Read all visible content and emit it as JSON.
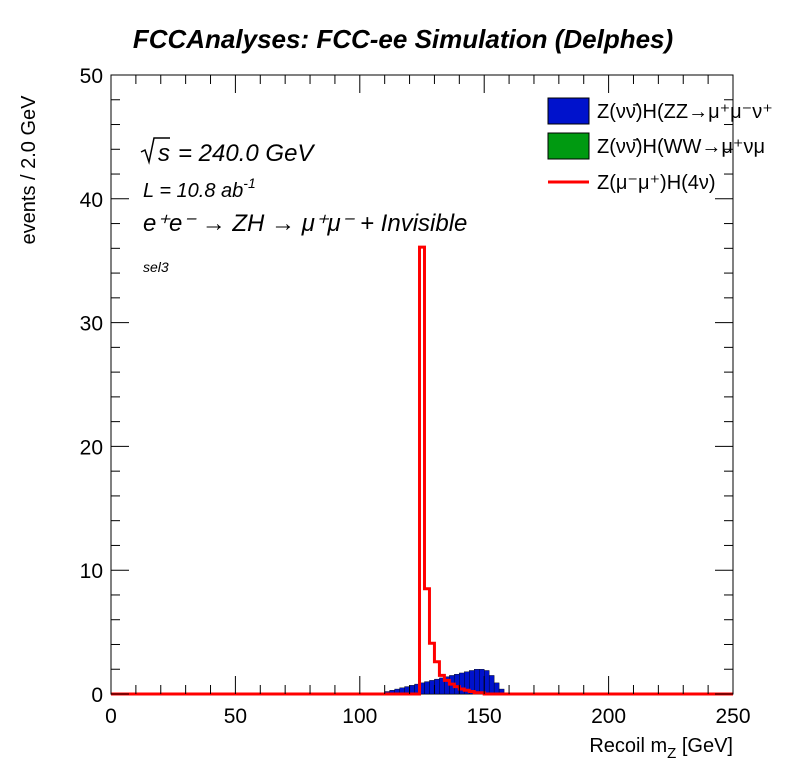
{
  "chart_data": {
    "type": "histogram",
    "title": "FCCAnalyses: FCC-ee Simulation (Delphes)",
    "xlabel": "Recoil m",
    "xlabel_sub": "Z",
    "xlabel_unit": "[GeV]",
    "ylabel": "events / 2.0 GeV",
    "xlim": [
      0,
      250
    ],
    "ylim": [
      0,
      50
    ],
    "bin_width": 2,
    "x_ticks": [
      0,
      50,
      100,
      150,
      200,
      250
    ],
    "y_ticks": [
      0,
      10,
      20,
      30,
      40,
      50
    ],
    "grid": false,
    "legend_position": "top-right",
    "annotations": {
      "sqrt_s": "= 240.0 GeV",
      "lumi": "L = 10.8 ab",
      "lumi_exp": "-1",
      "process": "e⁺e⁻ → ZH → μ⁺μ⁻ + Invisible",
      "selection": "sel3"
    },
    "series": [
      {
        "name": "Z(νν̄)H(ZZ→μ⁺μ⁻ν⁺",
        "style": "fill",
        "color": "#0012cc",
        "bin_edges_start": 108,
        "values": [
          0.1,
          0.2,
          0.3,
          0.4,
          0.5,
          0.6,
          0.7,
          0.8,
          0.9,
          1.0,
          1.1,
          1.2,
          1.3,
          1.4,
          1.5,
          1.6,
          1.7,
          1.8,
          1.9,
          2.0,
          2.0,
          1.9,
          1.5,
          0.9,
          0.4,
          0.1
        ]
      },
      {
        "name": "Z(νν̄)H(WW→μ⁺νμ",
        "style": "fill",
        "color": "#009a11",
        "bin_edges_start": 108,
        "values": []
      },
      {
        "name": "Z(μ⁻μ⁺)H(4ν)",
        "style": "line",
        "color": "#ff0000",
        "bin_edges_start": 124,
        "values": [
          36.1,
          8.5,
          4.1,
          2.6,
          1.5,
          1.1,
          0.8,
          0.6,
          0.4,
          0.3,
          0.2,
          0.1,
          0.1
        ]
      }
    ]
  }
}
